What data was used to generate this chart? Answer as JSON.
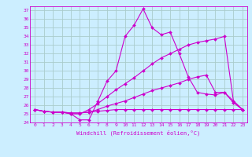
{
  "xlabel": "Windchill (Refroidissement éolien,°C)",
  "ylabel": "",
  "bg_color": "#cceeff",
  "line_color": "#cc00cc",
  "grid_color": "#aacccc",
  "xlim": [
    -0.5,
    23.5
  ],
  "ylim": [
    24,
    37.5
  ],
  "xticks": [
    0,
    1,
    2,
    3,
    4,
    5,
    6,
    7,
    8,
    9,
    10,
    11,
    12,
    13,
    14,
    15,
    16,
    17,
    18,
    19,
    20,
    21,
    22,
    23
  ],
  "yticks": [
    24,
    25,
    26,
    27,
    28,
    29,
    30,
    31,
    32,
    33,
    34,
    35,
    36,
    37
  ],
  "lines": [
    {
      "x": [
        0,
        1,
        2,
        3,
        4,
        5,
        6,
        7,
        8,
        9,
        10,
        11,
        12,
        13,
        14,
        15,
        16,
        17,
        18,
        19,
        20,
        21,
        22,
        23
      ],
      "y": [
        25.5,
        25.3,
        25.2,
        25.2,
        25.0,
        24.3,
        24.3,
        26.5,
        28.8,
        30.0,
        34.0,
        35.3,
        37.2,
        35.0,
        34.2,
        34.5,
        32.0,
        29.3,
        27.5,
        27.3,
        27.2,
        27.5,
        26.3,
        25.5
      ]
    },
    {
      "x": [
        0,
        1,
        2,
        3,
        4,
        5,
        6,
        7,
        8,
        9,
        10,
        11,
        12,
        13,
        14,
        15,
        16,
        17,
        18,
        19,
        20,
        21,
        22,
        23
      ],
      "y": [
        25.5,
        25.3,
        25.2,
        25.2,
        25.0,
        25.0,
        25.5,
        26.2,
        27.0,
        27.8,
        28.5,
        29.2,
        30.0,
        30.8,
        31.5,
        32.0,
        32.5,
        33.0,
        33.3,
        33.5,
        33.7,
        34.0,
        26.5,
        25.5
      ]
    },
    {
      "x": [
        0,
        1,
        2,
        3,
        4,
        5,
        6,
        7,
        8,
        9,
        10,
        11,
        12,
        13,
        14,
        15,
        16,
        17,
        18,
        19,
        20,
        21,
        22,
        23
      ],
      "y": [
        25.5,
        25.3,
        25.2,
        25.2,
        25.1,
        25.1,
        25.2,
        25.5,
        25.9,
        26.2,
        26.5,
        26.9,
        27.3,
        27.7,
        28.0,
        28.3,
        28.6,
        29.0,
        29.3,
        29.5,
        27.5,
        27.5,
        26.5,
        25.5
      ]
    },
    {
      "x": [
        0,
        1,
        2,
        3,
        4,
        5,
        6,
        7,
        8,
        9,
        10,
        11,
        12,
        13,
        14,
        15,
        16,
        17,
        18,
        19,
        20,
        21,
        22,
        23
      ],
      "y": [
        25.5,
        25.3,
        25.2,
        25.2,
        25.1,
        25.1,
        25.2,
        25.3,
        25.4,
        25.5,
        25.5,
        25.5,
        25.5,
        25.5,
        25.5,
        25.5,
        25.5,
        25.5,
        25.5,
        25.5,
        25.5,
        25.5,
        25.5,
        25.5
      ]
    }
  ]
}
